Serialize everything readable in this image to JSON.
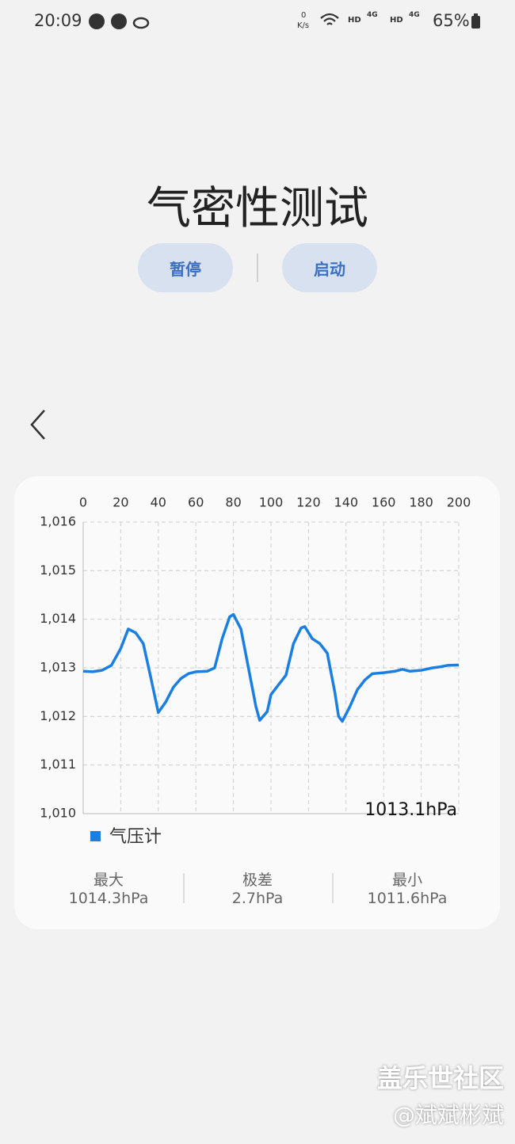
{
  "status_bar": {
    "time": "20:09",
    "speed_value": "0",
    "speed_unit": "K/s",
    "net1": "HD",
    "net1_type": "4G",
    "net2": "HD",
    "net2_type": "4G",
    "battery": "65%"
  },
  "header": {
    "title": "气密性测试"
  },
  "buttons": [
    "暂停",
    "启动"
  ],
  "chart_data": {
    "type": "line",
    "x": [
      0,
      5,
      10,
      15,
      20,
      24,
      28,
      32,
      36,
      40,
      44,
      48,
      52,
      56,
      60,
      66,
      70,
      74,
      78,
      80,
      84,
      88,
      92,
      94,
      98,
      100,
      104,
      108,
      112,
      116,
      118,
      122,
      126,
      130,
      134,
      136,
      138,
      142,
      146,
      150,
      154,
      160,
      166,
      170,
      174,
      180,
      186,
      190,
      194,
      200
    ],
    "series": [
      {
        "name": "气压计",
        "color": "#1a7fe0",
        "values": [
          1012.93,
          1012.92,
          1012.95,
          1013.05,
          1013.4,
          1013.8,
          1013.72,
          1013.5,
          1012.8,
          1012.08,
          1012.3,
          1012.6,
          1012.78,
          1012.88,
          1012.92,
          1012.93,
          1013.0,
          1013.6,
          1014.05,
          1014.1,
          1013.8,
          1013.0,
          1012.2,
          1011.92,
          1012.1,
          1012.45,
          1012.65,
          1012.85,
          1013.5,
          1013.82,
          1013.85,
          1013.6,
          1013.5,
          1013.3,
          1012.5,
          1012.0,
          1011.9,
          1012.2,
          1012.55,
          1012.75,
          1012.88,
          1012.9,
          1012.93,
          1012.97,
          1012.93,
          1012.95,
          1013.0,
          1013.02,
          1013.05,
          1013.06
        ]
      }
    ],
    "xlim": [
      0,
      200
    ],
    "xticks": [
      0,
      20,
      40,
      60,
      80,
      100,
      120,
      140,
      160,
      180,
      200
    ],
    "ylim": [
      1010,
      1016
    ],
    "yticks": [
      {
        "value": 1010,
        "label": "1,010"
      },
      {
        "value": 1011,
        "label": "1,011"
      },
      {
        "value": 1012,
        "label": "1,012"
      },
      {
        "value": 1013,
        "label": "1,013"
      },
      {
        "value": 1014,
        "label": "1,014"
      },
      {
        "value": 1015,
        "label": "1,015"
      },
      {
        "value": 1016,
        "label": "1,016"
      }
    ],
    "grid": true,
    "annotation": "1013.1hPa"
  },
  "stats": [
    {
      "label": "最大",
      "value": "1014.3hPa"
    },
    {
      "label": "极差",
      "value": "2.7hPa"
    },
    {
      "label": "最小",
      "value": "1011.6hPa"
    }
  ],
  "watermark": {
    "brand": "盖乐世社区",
    "user": "@斌斌彬斌"
  }
}
